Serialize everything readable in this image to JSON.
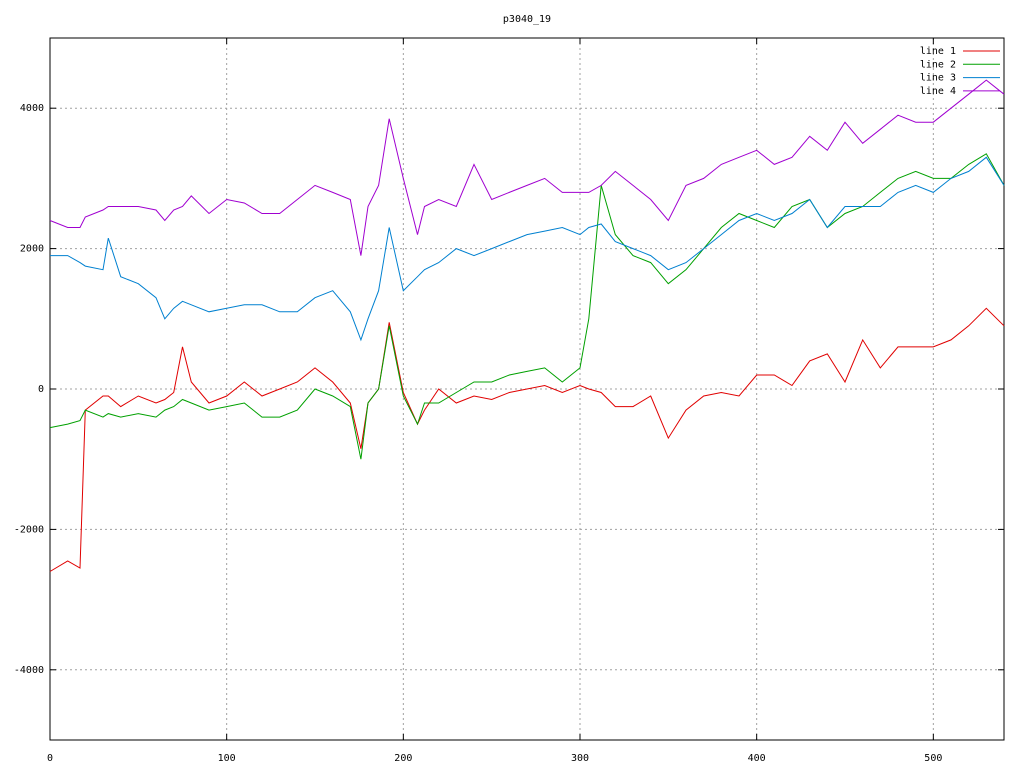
{
  "chart_data": {
    "type": "line",
    "title": "p3040_19",
    "x": [
      0,
      10,
      17,
      20,
      30,
      33,
      40,
      50,
      60,
      65,
      70,
      75,
      80,
      90,
      100,
      110,
      120,
      130,
      140,
      150,
      160,
      170,
      176,
      180,
      186,
      192,
      200,
      208,
      212,
      220,
      230,
      240,
      250,
      260,
      270,
      280,
      290,
      300,
      305,
      312,
      320,
      330,
      340,
      350,
      360,
      370,
      380,
      390,
      400,
      410,
      420,
      430,
      440,
      450,
      460,
      470,
      480,
      490,
      500,
      510,
      520,
      530,
      540
    ],
    "series": [
      {
        "name": "line 1",
        "color": "#e00000",
        "values": [
          -2600,
          -2450,
          -2550,
          -300,
          -100,
          -100,
          -250,
          -100,
          -200,
          -150,
          -50,
          600,
          100,
          -200,
          -100,
          100,
          -100,
          0,
          100,
          300,
          100,
          -200,
          -850,
          -200,
          0,
          950,
          -50,
          -500,
          -300,
          0,
          -200,
          -100,
          -150,
          -50,
          0,
          50,
          -50,
          50,
          0,
          -50,
          -250,
          -250,
          -100,
          -700,
          -300,
          -100,
          -50,
          -100,
          200,
          200,
          50,
          400,
          500,
          100,
          700,
          300,
          600,
          600,
          600,
          700,
          900,
          1150,
          900
        ]
      },
      {
        "name": "line 2",
        "color": "#00a000",
        "values": [
          -550,
          -500,
          -450,
          -300,
          -400,
          -350,
          -400,
          -350,
          -400,
          -300,
          -250,
          -150,
          -200,
          -300,
          -250,
          -200,
          -400,
          -400,
          -300,
          0,
          -100,
          -250,
          -1000,
          -200,
          0,
          900,
          -100,
          -500,
          -200,
          -200,
          -50,
          100,
          100,
          200,
          250,
          300,
          100,
          300,
          1000,
          2900,
          2200,
          1900,
          1800,
          1500,
          1700,
          2000,
          2300,
          2500,
          2400,
          2300,
          2600,
          2700,
          2300,
          2500,
          2600,
          2800,
          3000,
          3100,
          3000,
          3000,
          3200,
          3350,
          2900
        ]
      },
      {
        "name": "line 3",
        "color": "#0080d0",
        "values": [
          1900,
          1900,
          1800,
          1750,
          1700,
          2150,
          1600,
          1500,
          1300,
          1000,
          1150,
          1250,
          1200,
          1100,
          1150,
          1200,
          1200,
          1100,
          1100,
          1300,
          1400,
          1100,
          700,
          1000,
          1400,
          2300,
          1400,
          1600,
          1700,
          1800,
          2000,
          1900,
          2000,
          2100,
          2200,
          2250,
          2300,
          2200,
          2300,
          2350,
          2100,
          2000,
          1900,
          1700,
          1800,
          2000,
          2200,
          2400,
          2500,
          2400,
          2500,
          2700,
          2300,
          2600,
          2600,
          2600,
          2800,
          2900,
          2800,
          3000,
          3100,
          3300,
          2900
        ]
      },
      {
        "name": "line 4",
        "color": "#a000d0",
        "values": [
          2400,
          2300,
          2300,
          2450,
          2550,
          2600,
          2600,
          2600,
          2550,
          2400,
          2550,
          2600,
          2750,
          2500,
          2700,
          2650,
          2500,
          2500,
          2700,
          2900,
          2800,
          2700,
          1900,
          2600,
          2900,
          3850,
          3000,
          2200,
          2600,
          2700,
          2600,
          3200,
          2700,
          2800,
          2900,
          3000,
          2800,
          2800,
          2800,
          2900,
          3100,
          2900,
          2700,
          2400,
          2900,
          3000,
          3200,
          3300,
          3400,
          3200,
          3300,
          3600,
          3400,
          3800,
          3500,
          3700,
          3900,
          3800,
          3800,
          4000,
          4200,
          4400,
          4200
        ]
      }
    ],
    "xlim": [
      0,
      540
    ],
    "xticks": [
      0,
      100,
      200,
      300,
      400,
      500
    ],
    "ylim": [
      -5000,
      5000
    ],
    "yticks": [
      -4000,
      -2000,
      0,
      2000,
      4000
    ],
    "grid": true,
    "legend": "top-right"
  }
}
